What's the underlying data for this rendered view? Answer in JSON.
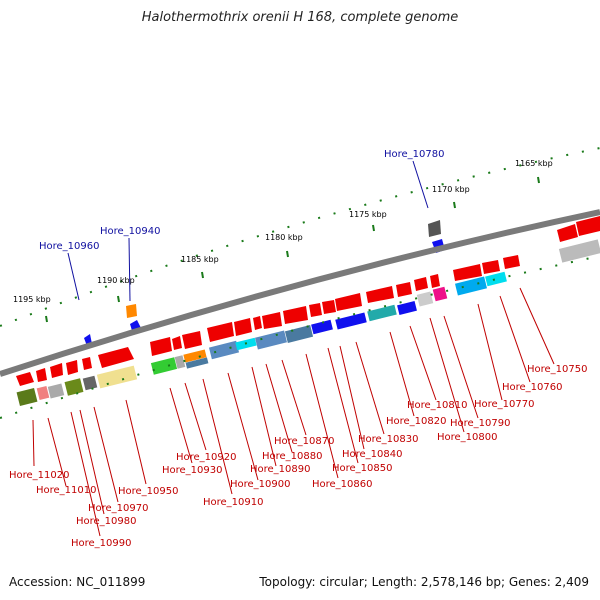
{
  "title": "Halothermothrix orenii H 168, complete genome",
  "footer": {
    "accession": "Accession: NC_011899",
    "summary": "Topology: circular; Length: 2,578,146 bp; Genes: 2,409"
  },
  "colors": {
    "backbone": "#7a7a7a",
    "forward_gene": "#ee0000",
    "label_red": "#c00000",
    "label_blue": "#1010a0",
    "tick_green": "#1a7a1a"
  },
  "scale_labels": [
    "1195 kbp",
    "1190 kbp",
    "1185 kbp",
    "1180 kbp",
    "1175 kbp",
    "1170 kbp",
    "1165 kbp"
  ],
  "top_labels": [
    "Hore_10960",
    "Hore_10940",
    "Hore_10780"
  ],
  "bottom_labels": [
    "Hore_11020",
    "Hore_11010",
    "Hore_10990",
    "Hore_10980",
    "Hore_10970",
    "Hore_10950",
    "Hore_10930",
    "Hore_10920",
    "Hore_10910",
    "Hore_10900",
    "Hore_10890",
    "Hore_10880",
    "Hore_10870",
    "Hore_10860",
    "Hore_10850",
    "Hore_10840",
    "Hore_10830",
    "Hore_10820",
    "Hore_10810",
    "Hore_10800",
    "Hore_10790",
    "Hore_10770",
    "Hore_10760",
    "Hore_10750"
  ]
}
